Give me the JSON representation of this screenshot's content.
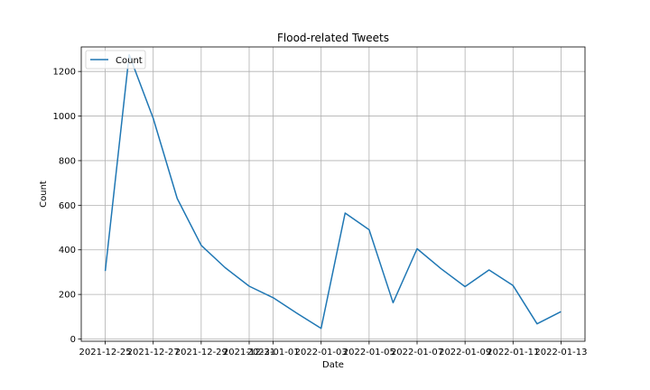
{
  "chart_data": {
    "type": "line",
    "title": "Flood-related Tweets",
    "xlabel": "Date",
    "ylabel": "Count",
    "x_tick_labels": [
      "2021-12-25",
      "2021-12-27",
      "2021-12-29",
      "2021-12-31",
      "2022-01-01",
      "2022-01-03",
      "2022-01-05",
      "2022-01-07",
      "2022-01-09",
      "2022-01-11",
      "2022-01-13"
    ],
    "y_ticks": [
      0,
      200,
      400,
      600,
      800,
      1000,
      1200
    ],
    "ylim": [
      -10,
      1310
    ],
    "xlim": [
      "2021-12-24",
      "2022-01-14"
    ],
    "grid": true,
    "legend_position": "top-left",
    "series": [
      {
        "name": "Count",
        "color": "#1f77b4",
        "x": [
          "2021-12-25",
          "2021-12-26",
          "2021-12-27",
          "2021-12-28",
          "2021-12-29",
          "2021-12-30",
          "2021-12-31",
          "2022-01-01",
          "2022-01-02",
          "2022-01-03",
          "2022-01-04",
          "2022-01-05",
          "2022-01-06",
          "2022-01-07",
          "2022-01-08",
          "2022-01-09",
          "2022-01-10",
          "2022-01-11",
          "2022-01-12",
          "2022-01-13"
        ],
        "values": [
          305,
          1275,
          990,
          630,
          420,
          320,
          237,
          185,
          115,
          48,
          565,
          490,
          163,
          405,
          315,
          235,
          310,
          240,
          68,
          123
        ]
      }
    ]
  }
}
